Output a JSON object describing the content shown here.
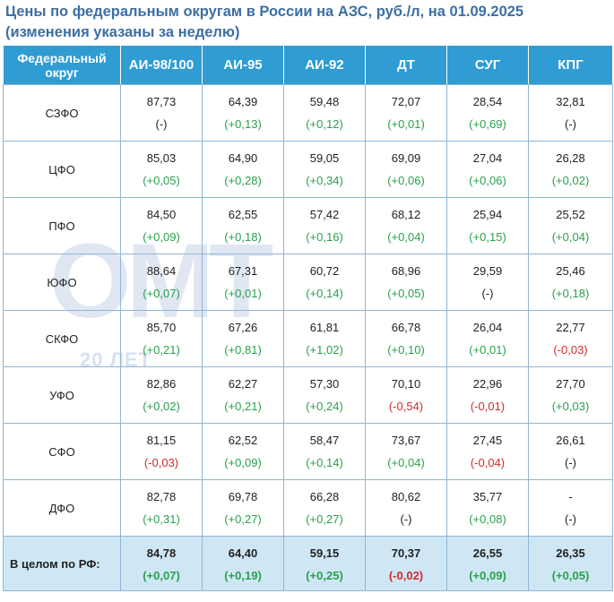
{
  "title": {
    "line1": "Цены по федеральным округам в России на АЗС, руб./л, на 01.09.2025",
    "line2": "(изменения указаны за неделю)"
  },
  "watermark": {
    "logo": "ОМТ",
    "sub": "20 ЛЕТ"
  },
  "colors": {
    "header_bg": "#2f9cd4",
    "positive": "#2aa14b",
    "negative": "#d42a2a",
    "total_bg": "#cfe7f5",
    "title": "#3d6fa3"
  },
  "table": {
    "headers": [
      "Федеральный округ",
      "АИ-98/100",
      "АИ-95",
      "АИ-92",
      "ДТ",
      "СУГ",
      "КПГ"
    ],
    "rows": [
      {
        "region": "СЗФО",
        "cells": [
          {
            "value": "87,73",
            "change": "(-)",
            "trend": "zero"
          },
          {
            "value": "64,39",
            "change": "(+0,13)",
            "trend": "pos"
          },
          {
            "value": "59,48",
            "change": "(+0,12)",
            "trend": "pos"
          },
          {
            "value": "72,07",
            "change": "(+0,01)",
            "trend": "pos"
          },
          {
            "value": "28,54",
            "change": "(+0,69)",
            "trend": "pos"
          },
          {
            "value": "32,81",
            "change": "(-)",
            "trend": "zero"
          }
        ]
      },
      {
        "region": "ЦФО",
        "cells": [
          {
            "value": "85,03",
            "change": "(+0,05)",
            "trend": "pos"
          },
          {
            "value": "64,90",
            "change": "(+0,28)",
            "trend": "pos"
          },
          {
            "value": "59,05",
            "change": "(+0,34)",
            "trend": "pos"
          },
          {
            "value": "69,09",
            "change": "(+0,06)",
            "trend": "pos"
          },
          {
            "value": "27,04",
            "change": "(+0,06)",
            "trend": "pos"
          },
          {
            "value": "26,28",
            "change": "(+0,02)",
            "trend": "pos"
          }
        ]
      },
      {
        "region": "ПФО",
        "cells": [
          {
            "value": "84,50",
            "change": "(+0,09)",
            "trend": "pos"
          },
          {
            "value": "62,55",
            "change": "(+0,18)",
            "trend": "pos"
          },
          {
            "value": "57,42",
            "change": "(+0,16)",
            "trend": "pos"
          },
          {
            "value": "68,12",
            "change": "(+0,04)",
            "trend": "pos"
          },
          {
            "value": "25,94",
            "change": "(+0,15)",
            "trend": "pos"
          },
          {
            "value": "25,52",
            "change": "(+0,04)",
            "trend": "pos"
          }
        ]
      },
      {
        "region": "ЮФО",
        "cells": [
          {
            "value": "88,64",
            "change": "(+0,07)",
            "trend": "pos"
          },
          {
            "value": "67,31",
            "change": "(+0,01)",
            "trend": "pos"
          },
          {
            "value": "60,72",
            "change": "(+0,14)",
            "trend": "pos"
          },
          {
            "value": "68,96",
            "change": "(+0,05)",
            "trend": "pos"
          },
          {
            "value": "29,59",
            "change": "(-)",
            "trend": "zero"
          },
          {
            "value": "25,46",
            "change": "(+0,18)",
            "trend": "pos"
          }
        ]
      },
      {
        "region": "СКФО",
        "cells": [
          {
            "value": "85,70",
            "change": "(+0,21)",
            "trend": "pos"
          },
          {
            "value": "67,26",
            "change": "(+0,81)",
            "trend": "pos"
          },
          {
            "value": "61,81",
            "change": "(+1,02)",
            "trend": "pos"
          },
          {
            "value": "66,78",
            "change": "(+0,10)",
            "trend": "pos"
          },
          {
            "value": "26,04",
            "change": "(+0,01)",
            "trend": "pos"
          },
          {
            "value": "22,77",
            "change": "(-0,03)",
            "trend": "neg"
          }
        ]
      },
      {
        "region": "УФО",
        "cells": [
          {
            "value": "82,86",
            "change": "(+0,02)",
            "trend": "pos"
          },
          {
            "value": "62,27",
            "change": "(+0,21)",
            "trend": "pos"
          },
          {
            "value": "57,30",
            "change": "(+0,24)",
            "trend": "pos"
          },
          {
            "value": "70,10",
            "change": "(-0,54)",
            "trend": "neg"
          },
          {
            "value": "22,96",
            "change": "(-0,01)",
            "trend": "neg"
          },
          {
            "value": "27,70",
            "change": "(+0,03)",
            "trend": "pos"
          }
        ]
      },
      {
        "region": "СФО",
        "cells": [
          {
            "value": "81,15",
            "change": "(-0,03)",
            "trend": "neg"
          },
          {
            "value": "62,52",
            "change": "(+0,09)",
            "trend": "pos"
          },
          {
            "value": "58,47",
            "change": "(+0,14)",
            "trend": "pos"
          },
          {
            "value": "73,67",
            "change": "(+0,04)",
            "trend": "pos"
          },
          {
            "value": "27,45",
            "change": "(-0,04)",
            "trend": "neg"
          },
          {
            "value": "26,61",
            "change": "(-)",
            "trend": "zero"
          }
        ]
      },
      {
        "region": "ДФО",
        "cells": [
          {
            "value": "82,78",
            "change": "(+0,31)",
            "trend": "pos"
          },
          {
            "value": "69,78",
            "change": "(+0,27)",
            "trend": "pos"
          },
          {
            "value": "66,28",
            "change": "(+0,27)",
            "trend": "pos"
          },
          {
            "value": "80,62",
            "change": "(-)",
            "trend": "zero"
          },
          {
            "value": "35,77",
            "change": "(+0,08)",
            "trend": "pos"
          },
          {
            "value": "-",
            "change": "(-)",
            "trend": "zero"
          }
        ]
      }
    ],
    "total": {
      "region": "В целом по РФ:",
      "cells": [
        {
          "value": "84,78",
          "change": "(+0,07)",
          "trend": "pos"
        },
        {
          "value": "64,40",
          "change": "(+0,19)",
          "trend": "pos"
        },
        {
          "value": "59,15",
          "change": "(+0,25)",
          "trend": "pos"
        },
        {
          "value": "70,37",
          "change": "(-0,02)",
          "trend": "neg"
        },
        {
          "value": "26,55",
          "change": "(+0,09)",
          "trend": "pos"
        },
        {
          "value": "26,35",
          "change": "(+0,05)",
          "trend": "pos"
        }
      ]
    }
  }
}
